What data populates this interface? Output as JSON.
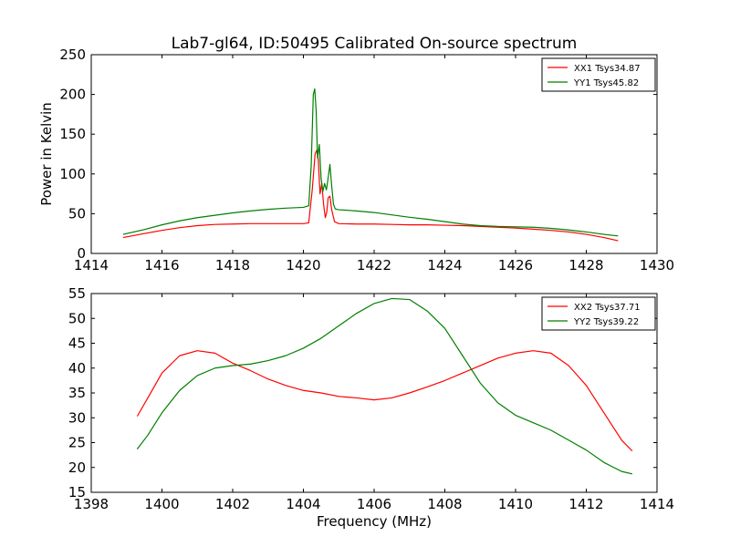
{
  "title": "Lab7-gl64, ID:50495 Calibrated On-source spectrum",
  "colors": {
    "xx": "#ff0000",
    "yy": "#007f00"
  },
  "chart_data": [
    {
      "type": "line",
      "ylabel": "Power in Kelvin",
      "xlabel": "",
      "xlim": [
        1414,
        1430
      ],
      "ylim": [
        0,
        250
      ],
      "xticks": [
        1414,
        1416,
        1418,
        1420,
        1422,
        1424,
        1426,
        1428,
        1430
      ],
      "yticks": [
        0,
        50,
        100,
        150,
        200,
        250
      ],
      "legend": "top-right",
      "series": [
        {
          "name": "XX1 Tsys34.87",
          "color": "#ff0000",
          "x": [
            1414.9,
            1415.5,
            1416.0,
            1416.5,
            1417.0,
            1417.5,
            1418.0,
            1418.5,
            1419.0,
            1419.5,
            1420.0,
            1420.15,
            1420.25,
            1420.33,
            1420.38,
            1420.42,
            1420.47,
            1420.52,
            1420.57,
            1420.62,
            1420.66,
            1420.7,
            1420.75,
            1420.8,
            1420.88,
            1421.0,
            1421.5,
            1422.0,
            1422.5,
            1423.0,
            1423.5,
            1424.0,
            1424.5,
            1425.0,
            1425.5,
            1426.0,
            1426.5,
            1427.0,
            1427.5,
            1428.0,
            1428.5,
            1428.9
          ],
          "y": [
            20,
            25,
            29,
            32.5,
            35,
            36.5,
            37,
            37.5,
            37.5,
            37.5,
            37.5,
            38.5,
            80,
            125,
            130,
            118,
            75,
            88,
            62,
            45,
            52,
            70,
            72,
            55,
            40,
            37.5,
            37,
            37,
            36.5,
            36,
            36,
            35.5,
            35,
            34,
            33,
            32,
            30.5,
            29,
            27,
            24,
            20,
            16
          ]
        },
        {
          "name": "YY1 Tsys45.82",
          "color": "#007f00",
          "x": [
            1414.9,
            1415.5,
            1416.0,
            1416.5,
            1417.0,
            1417.5,
            1418.0,
            1418.5,
            1419.0,
            1419.5,
            1420.0,
            1420.15,
            1420.22,
            1420.28,
            1420.32,
            1420.36,
            1420.4,
            1420.45,
            1420.5,
            1420.55,
            1420.6,
            1420.65,
            1420.7,
            1420.75,
            1420.8,
            1420.85,
            1420.9,
            1421.0,
            1421.5,
            1422.0,
            1422.5,
            1423.0,
            1423.5,
            1424.0,
            1424.5,
            1425.0,
            1425.5,
            1426.0,
            1426.5,
            1427.0,
            1427.5,
            1428.0,
            1428.5,
            1428.9
          ],
          "y": [
            24,
            30,
            36,
            41,
            45,
            48,
            51,
            53.5,
            55.5,
            57,
            58,
            60,
            110,
            200,
            207,
            180,
            120,
            137,
            95,
            78,
            88,
            80,
            95,
            112,
            85,
            62,
            56,
            55,
            53.5,
            51.5,
            48.5,
            45.5,
            43,
            40,
            37,
            35,
            34,
            33.5,
            33,
            31.5,
            29.5,
            27,
            24,
            22
          ]
        }
      ]
    },
    {
      "type": "line",
      "ylabel": "",
      "xlabel": "Frequency (MHz)",
      "xlim": [
        1398,
        1414
      ],
      "ylim": [
        15,
        55
      ],
      "xticks": [
        1398,
        1400,
        1402,
        1404,
        1406,
        1408,
        1410,
        1412,
        1414
      ],
      "yticks": [
        15,
        20,
        25,
        30,
        35,
        40,
        45,
        50,
        55
      ],
      "legend": "top-right",
      "series": [
        {
          "name": "XX2 Tsys37.71",
          "color": "#ff0000",
          "x": [
            1399.3,
            1399.6,
            1400.0,
            1400.5,
            1401.0,
            1401.5,
            1402.0,
            1402.5,
            1403.0,
            1403.5,
            1404.0,
            1404.5,
            1405.0,
            1405.5,
            1406.0,
            1406.5,
            1407.0,
            1407.5,
            1408.0,
            1408.5,
            1409.0,
            1409.5,
            1410.0,
            1410.5,
            1411.0,
            1411.5,
            1412.0,
            1412.5,
            1413.0,
            1413.3
          ],
          "y": [
            30.3,
            34,
            39,
            42.5,
            43.5,
            43,
            41,
            39.5,
            37.8,
            36.5,
            35.5,
            35,
            34.3,
            34,
            33.6,
            34,
            35,
            36.2,
            37.5,
            39,
            40.5,
            42,
            43,
            43.5,
            43,
            40.5,
            36.5,
            31,
            25.5,
            23.3
          ]
        },
        {
          "name": "YY2 Tsys39.22",
          "color": "#007f00",
          "x": [
            1399.3,
            1399.6,
            1400.0,
            1400.5,
            1401.0,
            1401.5,
            1402.0,
            1402.5,
            1403.0,
            1403.5,
            1404.0,
            1404.5,
            1405.0,
            1405.5,
            1406.0,
            1406.5,
            1407.0,
            1407.5,
            1408.0,
            1408.5,
            1409.0,
            1409.5,
            1410.0,
            1410.5,
            1411.0,
            1411.5,
            1412.0,
            1412.5,
            1413.0,
            1413.3
          ],
          "y": [
            23.7,
            26.5,
            31,
            35.5,
            38.5,
            40,
            40.5,
            40.8,
            41.5,
            42.5,
            44,
            46,
            48.5,
            51,
            53,
            54,
            53.8,
            51.5,
            48,
            42.5,
            37,
            33,
            30.5,
            29,
            27.5,
            25.5,
            23.5,
            21,
            19.2,
            18.7
          ]
        }
      ]
    }
  ]
}
